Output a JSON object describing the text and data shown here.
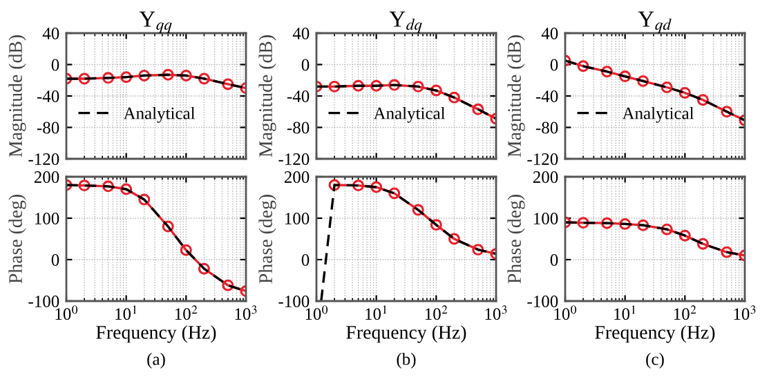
{
  "chart_data": [
    {
      "type": "line",
      "title": "Y$_{qq}$",
      "ylabel": "Magnitude (dB)",
      "x": [
        1,
        2,
        5,
        10,
        20,
        50,
        100,
        200,
        500,
        1000
      ],
      "log": "x",
      "xlim": [
        1,
        1000
      ],
      "xticks": [
        {
          "value": 1,
          "label": null
        },
        {
          "value": 10,
          "label": null
        },
        {
          "value": 100,
          "label": null
        },
        {
          "value": 1000,
          "label": null
        }
      ],
      "ylim": [
        -120,
        40
      ],
      "yticks": [
        -120,
        -80,
        -40,
        0,
        40
      ],
      "tick_labels": "y",
      "grid": true,
      "legend": "left",
      "series": [
        {
          "color": "#e8202a",
          "marker": "circle",
          "line_style": "solid",
          "values": [
            -18,
            -18,
            -17,
            -16,
            -14,
            -13,
            -14,
            -18,
            -25,
            -30
          ]
        },
        {
          "name": "Analytical",
          "color": "#000000",
          "marker": "none",
          "line_style": "dashed",
          "values": [
            -18,
            -18,
            -17,
            -16,
            -14,
            -13,
            -14,
            -18,
            -25,
            -30
          ]
        }
      ]
    },
    {
      "type": "line",
      "title": "Y$_{dq}$",
      "ylabel": "Magnitude (dB)",
      "x": [
        1,
        2,
        5,
        10,
        20,
        50,
        100,
        200,
        500,
        1000
      ],
      "log": "x",
      "xlim": [
        1,
        1000
      ],
      "xticks": [
        {
          "value": 1,
          "label": null
        },
        {
          "value": 10,
          "label": null
        },
        {
          "value": 100,
          "label": null
        },
        {
          "value": 1000,
          "label": null
        }
      ],
      "ylim": [
        -120,
        40
      ],
      "yticks": [
        -120,
        -80,
        -40,
        0,
        40
      ],
      "tick_labels": "y",
      "grid": true,
      "legend": "left",
      "series": [
        {
          "color": "#e8202a",
          "marker": "circle",
          "line_style": "solid",
          "values": [
            -28,
            -28,
            -27,
            -27,
            -26,
            -28,
            -33,
            -42,
            -57,
            -69
          ]
        },
        {
          "name": "Analytical",
          "color": "#000000",
          "marker": "none",
          "line_style": "dashed",
          "values": [
            -28,
            -28,
            -27,
            -27,
            -26,
            -28,
            -33,
            -42,
            -57,
            -69
          ]
        }
      ]
    },
    {
      "type": "line",
      "title": "Y$_{qd}$",
      "ylabel": "Magnitude (dB)",
      "x": [
        1,
        2,
        5,
        10,
        20,
        50,
        100,
        200,
        500,
        1000
      ],
      "log": "x",
      "xlim": [
        1,
        1000
      ],
      "xticks": [
        {
          "value": 1,
          "label": null
        },
        {
          "value": 10,
          "label": null
        },
        {
          "value": 100,
          "label": null
        },
        {
          "value": 1000,
          "label": null
        }
      ],
      "ylim": [
        -120,
        40
      ],
      "yticks": [
        -120,
        -80,
        -40,
        0,
        40
      ],
      "tick_labels": "y",
      "grid": true,
      "legend": "left",
      "series": [
        {
          "color": "#e8202a",
          "marker": "circle",
          "line_style": "solid",
          "values": [
            5,
            -2,
            -9,
            -15,
            -21,
            -29,
            -36,
            -45,
            -60,
            -71
          ]
        },
        {
          "name": "Analytical",
          "color": "#000000",
          "marker": "none",
          "line_style": "dashed",
          "values": [
            5,
            -2,
            -9,
            -15,
            -21,
            -29,
            -36,
            -45,
            -60,
            -71
          ]
        }
      ]
    },
    {
      "type": "line",
      "xlabel": "Frequency (Hz)",
      "ylabel": "Phase (deg)",
      "annotations": [
        "(a)"
      ],
      "x": [
        1,
        2,
        5,
        10,
        20,
        50,
        100,
        200,
        500,
        1000
      ],
      "log": "x",
      "xlim": [
        1,
        1000
      ],
      "xticks": [
        {
          "value": 1,
          "label": "10$^{0}$"
        },
        {
          "value": 10,
          "label": "10$^{1}$"
        },
        {
          "value": 100,
          "label": "10$^{2}$"
        },
        {
          "value": 1000,
          "label": "10$^{3}$"
        }
      ],
      "ylim": [
        -100,
        200
      ],
      "yticks": [
        -100,
        0,
        100,
        200
      ],
      "grid": true,
      "series": [
        {
          "color": "#e8202a",
          "marker": "circle",
          "line_style": "solid",
          "values": [
            180,
            179,
            177,
            170,
            145,
            80,
            23,
            -22,
            -62,
            -76
          ]
        },
        {
          "color": "#000000",
          "marker": "none",
          "line_style": "dashed",
          "values": [
            180,
            179,
            177,
            170,
            145,
            80,
            23,
            -22,
            -62,
            -76
          ]
        }
      ]
    },
    {
      "type": "line",
      "xlabel": "Frequency (Hz)",
      "ylabel": "Phase (deg)",
      "annotations": [
        "(b)"
      ],
      "log": "x",
      "xlim": [
        1,
        1000
      ],
      "xticks": [
        {
          "value": 1,
          "label": "10$^{0}$"
        },
        {
          "value": 10,
          "label": "10$^{1}$"
        },
        {
          "value": 100,
          "label": "10$^{2}$"
        },
        {
          "value": 1000,
          "label": "10$^{3}$"
        }
      ],
      "ylim": [
        -100,
        200
      ],
      "yticks": [
        -100,
        0,
        100,
        200
      ],
      "grid": true,
      "series": [
        {
          "color": "#e8202a",
          "marker": "circle",
          "line_style": "solid",
          "x": [
            2,
            5,
            10,
            20,
            50,
            100,
            200,
            500,
            1000
          ],
          "values": [
            180,
            179,
            175,
            160,
            120,
            84,
            50,
            24,
            14
          ]
        },
        {
          "color": "#000000",
          "marker": "none",
          "line_style": "dashed",
          "x": [
            1.2,
            2,
            5,
            10,
            20,
            50,
            100,
            200,
            500,
            1000
          ],
          "values": [
            -100,
            180,
            179,
            175,
            160,
            120,
            84,
            50,
            24,
            14
          ]
        }
      ]
    },
    {
      "type": "line",
      "xlabel": "Frequency (Hz)",
      "ylabel": "Phase (deg)",
      "annotations": [
        "(c)"
      ],
      "x": [
        1,
        2,
        5,
        10,
        20,
        50,
        100,
        200,
        500,
        1000
      ],
      "log": "x",
      "xlim": [
        1,
        1000
      ],
      "xticks": [
        {
          "value": 1,
          "label": "10$^{0}$"
        },
        {
          "value": 10,
          "label": "10$^{1}$"
        },
        {
          "value": 100,
          "label": "10$^{2}$"
        },
        {
          "value": 1000,
          "label": "10$^{3}$"
        }
      ],
      "ylim": [
        -100,
        200
      ],
      "yticks": [
        -100,
        0,
        100,
        200
      ],
      "grid": true,
      "series": [
        {
          "color": "#e8202a",
          "marker": "circle",
          "line_style": "solid",
          "values": [
            90,
            89,
            88,
            86,
            83,
            73,
            58,
            38,
            18,
            10
          ]
        },
        {
          "color": "#000000",
          "marker": "none",
          "line_style": "dashed",
          "values": [
            90,
            89,
            88,
            86,
            83,
            73,
            58,
            38,
            18,
            10
          ]
        }
      ]
    }
  ]
}
